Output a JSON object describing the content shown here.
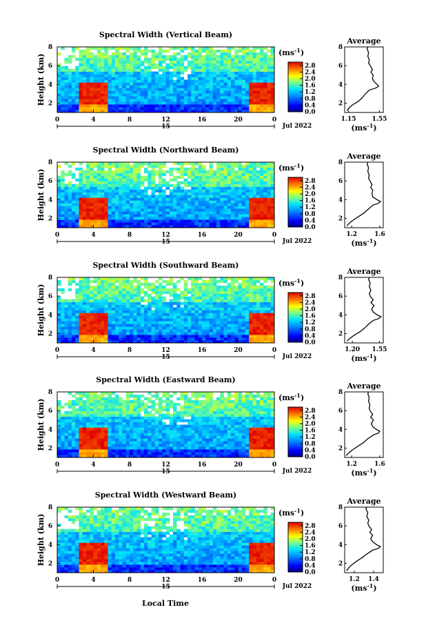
{
  "figure": {
    "xlabel": "Local Time",
    "date_label": "Jul 2022",
    "colorbar_unit": "(ms",
    "unit_exp": "-1",
    "height_label": "Height (km)"
  },
  "chart_data": [
    {
      "type": "heatmap",
      "title": "Spectral Width (Vertical Beam)",
      "xlabel": "",
      "ylabel": "Height (km)",
      "x_ticks": [
        "0",
        "4",
        "8",
        "12",
        "16",
        "20",
        "0"
      ],
      "y_ticks": [
        "2",
        "4",
        "6",
        "8"
      ],
      "day_label": "15",
      "colorbar": {
        "label": "(ms-1)",
        "ticks": [
          "0.0",
          "0.4",
          "0.8",
          "1.2",
          "1.6",
          "2.0",
          "2.4",
          "2.8"
        ],
        "range": [
          0,
          3.0
        ]
      },
      "profile": {
        "title": "Average",
        "xlabel": "(ms-1)",
        "x_ticks": [
          "1.15",
          "1.55"
        ],
        "y_ticks": [
          "2",
          "4",
          "6",
          "8"
        ],
        "xlim": [
          1.1,
          1.6
        ],
        "points": [
          [
            1.13,
            1.2
          ],
          [
            1.16,
            1.5
          ],
          [
            1.2,
            1.8
          ],
          [
            1.28,
            2.2
          ],
          [
            1.33,
            2.6
          ],
          [
            1.37,
            3.0
          ],
          [
            1.42,
            3.4
          ],
          [
            1.5,
            3.6
          ],
          [
            1.54,
            3.8
          ],
          [
            1.52,
            4.0
          ],
          [
            1.48,
            4.3
          ],
          [
            1.46,
            4.6
          ],
          [
            1.47,
            5.0
          ],
          [
            1.44,
            5.3
          ],
          [
            1.46,
            5.6
          ],
          [
            1.43,
            6.0
          ],
          [
            1.41,
            6.3
          ],
          [
            1.42,
            6.6
          ],
          [
            1.4,
            7.0
          ],
          [
            1.41,
            7.4
          ],
          [
            1.39,
            7.8
          ],
          [
            1.4,
            8.0
          ]
        ]
      }
    },
    {
      "type": "heatmap",
      "title": "Spectral Width (Northward Beam)",
      "xlabel": "",
      "ylabel": "Height (km)",
      "x_ticks": [
        "0",
        "4",
        "8",
        "12",
        "16",
        "20",
        "0"
      ],
      "y_ticks": [
        "2",
        "4",
        "6",
        "8"
      ],
      "day_label": "15",
      "colorbar": {
        "label": "(ms-1)",
        "ticks": [
          "0.0",
          "0.4",
          "0.8",
          "1.2",
          "1.6",
          "2.0",
          "2.4",
          "2.8"
        ],
        "range": [
          0,
          3.0
        ]
      },
      "profile": {
        "title": "Average",
        "xlabel": "(ms-1)",
        "x_ticks": [
          "1.2",
          "1.6"
        ],
        "y_ticks": [
          "2",
          "4",
          "6",
          "8"
        ],
        "xlim": [
          1.1,
          1.65
        ],
        "points": [
          [
            1.13,
            1.2
          ],
          [
            1.17,
            1.5
          ],
          [
            1.22,
            1.8
          ],
          [
            1.3,
            2.2
          ],
          [
            1.38,
            2.6
          ],
          [
            1.44,
            3.0
          ],
          [
            1.5,
            3.4
          ],
          [
            1.58,
            3.6
          ],
          [
            1.61,
            3.8
          ],
          [
            1.56,
            4.0
          ],
          [
            1.5,
            4.3
          ],
          [
            1.49,
            4.6
          ],
          [
            1.5,
            5.0
          ],
          [
            1.47,
            5.3
          ],
          [
            1.49,
            5.6
          ],
          [
            1.46,
            6.0
          ],
          [
            1.44,
            6.3
          ],
          [
            1.45,
            6.6
          ],
          [
            1.43,
            7.0
          ],
          [
            1.44,
            7.4
          ],
          [
            1.42,
            7.8
          ],
          [
            1.43,
            8.0
          ]
        ]
      }
    },
    {
      "type": "heatmap",
      "title": "Spectral Width (Southward Beam)",
      "xlabel": "",
      "ylabel": "Height (km)",
      "x_ticks": [
        "0",
        "4",
        "8",
        "12",
        "16",
        "20",
        "0"
      ],
      "y_ticks": [
        "2",
        "4",
        "6",
        "8"
      ],
      "day_label": "15",
      "colorbar": {
        "label": "(ms-1)",
        "ticks": [
          "0.0",
          "0.4",
          "0.8",
          "1.2",
          "1.6",
          "2.0",
          "2.4",
          "2.8"
        ],
        "range": [
          0,
          3.0
        ]
      },
      "profile": {
        "title": "Average",
        "xlabel": "(ms-1)",
        "x_ticks": [
          "1.20",
          "1.55"
        ],
        "y_ticks": [
          "2",
          "4",
          "6",
          "8"
        ],
        "xlim": [
          1.1,
          1.6
        ],
        "points": [
          [
            1.13,
            1.2
          ],
          [
            1.17,
            1.5
          ],
          [
            1.22,
            1.8
          ],
          [
            1.3,
            2.2
          ],
          [
            1.36,
            2.6
          ],
          [
            1.41,
            3.0
          ],
          [
            1.47,
            3.4
          ],
          [
            1.54,
            3.6
          ],
          [
            1.57,
            3.8
          ],
          [
            1.52,
            4.0
          ],
          [
            1.47,
            4.3
          ],
          [
            1.45,
            4.6
          ],
          [
            1.48,
            5.0
          ],
          [
            1.44,
            5.3
          ],
          [
            1.47,
            5.6
          ],
          [
            1.43,
            6.0
          ],
          [
            1.42,
            6.3
          ],
          [
            1.44,
            6.6
          ],
          [
            1.42,
            7.0
          ],
          [
            1.43,
            7.4
          ],
          [
            1.41,
            7.8
          ],
          [
            1.42,
            8.0
          ]
        ]
      }
    },
    {
      "type": "heatmap",
      "title": "Spectral Width (Eastward Beam)",
      "xlabel": "",
      "ylabel": "Height (km)",
      "x_ticks": [
        "0",
        "4",
        "8",
        "12",
        "16",
        "20",
        "0"
      ],
      "y_ticks": [
        "2",
        "4",
        "6",
        "8"
      ],
      "day_label": "15",
      "colorbar": {
        "label": "(ms-1)",
        "ticks": [
          "0.0",
          "0.4",
          "0.8",
          "1.2",
          "1.6",
          "2.0",
          "2.4",
          "2.8"
        ],
        "range": [
          0,
          3.0
        ]
      },
      "profile": {
        "title": "Average",
        "xlabel": "(ms-1)",
        "x_ticks": [
          "1.2",
          "1.6"
        ],
        "y_ticks": [
          "2",
          "4",
          "6",
          "8"
        ],
        "xlim": [
          1.1,
          1.65
        ],
        "points": [
          [
            1.12,
            1.2
          ],
          [
            1.16,
            1.5
          ],
          [
            1.21,
            1.8
          ],
          [
            1.29,
            2.2
          ],
          [
            1.37,
            2.6
          ],
          [
            1.43,
            3.0
          ],
          [
            1.51,
            3.4
          ],
          [
            1.58,
            3.6
          ],
          [
            1.6,
            3.8
          ],
          [
            1.55,
            4.0
          ],
          [
            1.5,
            4.3
          ],
          [
            1.48,
            4.6
          ],
          [
            1.51,
            5.0
          ],
          [
            1.47,
            5.3
          ],
          [
            1.5,
            5.6
          ],
          [
            1.46,
            6.0
          ],
          [
            1.45,
            6.3
          ],
          [
            1.46,
            6.6
          ],
          [
            1.44,
            7.0
          ],
          [
            1.45,
            7.4
          ],
          [
            1.43,
            7.8
          ],
          [
            1.44,
            8.0
          ]
        ]
      }
    },
    {
      "type": "heatmap",
      "title": "Spectral Width (Westward Beam)",
      "xlabel": "Local Time",
      "ylabel": "Height (km)",
      "x_ticks": [
        "0",
        "4",
        "8",
        "12",
        "16",
        "20",
        "0"
      ],
      "y_ticks": [
        "2",
        "4",
        "6",
        "8"
      ],
      "day_label": "15",
      "colorbar": {
        "label": "(ms-1)",
        "ticks": [
          "0.0",
          "0.4",
          "0.8",
          "1.2",
          "1.6",
          "2.0",
          "2.4",
          "2.8"
        ],
        "range": [
          0,
          3.0
        ]
      },
      "profile": {
        "title": "Average",
        "xlabel": "(ms-1)",
        "x_ticks": [
          "1.2",
          "1.4"
        ],
        "y_ticks": [
          "2",
          "4",
          "6",
          "8"
        ],
        "xlim": [
          1.1,
          1.5
        ],
        "points": [
          [
            1.12,
            1.2
          ],
          [
            1.14,
            1.5
          ],
          [
            1.17,
            1.8
          ],
          [
            1.22,
            2.2
          ],
          [
            1.28,
            2.6
          ],
          [
            1.33,
            3.0
          ],
          [
            1.39,
            3.4
          ],
          [
            1.45,
            3.6
          ],
          [
            1.47,
            3.8
          ],
          [
            1.43,
            4.0
          ],
          [
            1.39,
            4.3
          ],
          [
            1.37,
            4.6
          ],
          [
            1.39,
            5.0
          ],
          [
            1.36,
            5.3
          ],
          [
            1.38,
            5.6
          ],
          [
            1.35,
            6.0
          ],
          [
            1.34,
            6.3
          ],
          [
            1.35,
            6.6
          ],
          [
            1.33,
            7.0
          ],
          [
            1.34,
            7.4
          ],
          [
            1.32,
            7.8
          ],
          [
            1.33,
            8.0
          ]
        ]
      }
    }
  ]
}
